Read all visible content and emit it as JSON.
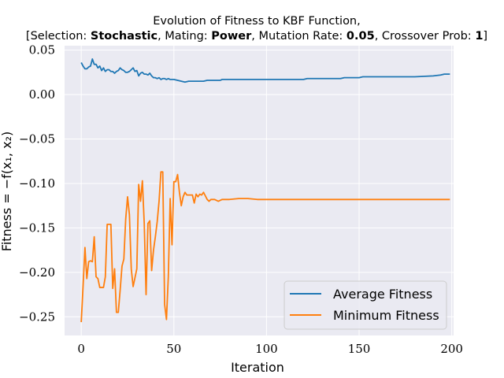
{
  "chart_data": {
    "type": "line",
    "title_line1": "Evolution of Fitness to KBF Function,",
    "title_line2": {
      "t0": "[Selection: ",
      "t1": "Stochastic",
      "t2": ", Mating: ",
      "t3": "Power",
      "t4": ", Mutation Rate: ",
      "t5": "0.05",
      "t6": ", Crossover Prob: ",
      "t7": "1",
      "t8": "]"
    },
    "xlabel": "Iteration",
    "ylabel": "Fitness = −f(x₁, x₂)",
    "xlim": [
      -9,
      201
    ],
    "ylim": [
      -0.271,
      0.055
    ],
    "x_ticks": [
      0,
      50,
      100,
      150,
      200
    ],
    "y_ticks": [
      0.05,
      0.0,
      -0.05,
      -0.1,
      -0.15,
      -0.2,
      -0.25
    ],
    "x_tick_labels": [
      "0",
      "50",
      "100",
      "150",
      "200"
    ],
    "y_tick_labels": [
      "0.05",
      "0.00",
      "−0.05",
      "−0.10",
      "−0.15",
      "−0.20",
      "−0.25"
    ],
    "grid": true,
    "legend_position": "lower-right",
    "series": [
      {
        "name": "Average Fitness",
        "color": "#1f77b4",
        "points": [
          [
            0,
            0.036
          ],
          [
            1,
            0.032
          ],
          [
            2,
            0.029
          ],
          [
            3,
            0.029
          ],
          [
            4,
            0.031
          ],
          [
            5,
            0.032
          ],
          [
            6,
            0.04
          ],
          [
            7,
            0.034
          ],
          [
            8,
            0.034
          ],
          [
            9,
            0.03
          ],
          [
            10,
            0.032
          ],
          [
            11,
            0.027
          ],
          [
            12,
            0.03
          ],
          [
            13,
            0.026
          ],
          [
            14,
            0.028
          ],
          [
            15,
            0.028
          ],
          [
            16,
            0.026
          ],
          [
            17,
            0.026
          ],
          [
            18,
            0.024
          ],
          [
            19,
            0.026
          ],
          [
            20,
            0.027
          ],
          [
            21,
            0.03
          ],
          [
            22,
            0.028
          ],
          [
            23,
            0.027
          ],
          [
            24,
            0.025
          ],
          [
            25,
            0.025
          ],
          [
            26,
            0.026
          ],
          [
            27,
            0.028
          ],
          [
            28,
            0.03
          ],
          [
            29,
            0.026
          ],
          [
            30,
            0.027
          ],
          [
            31,
            0.021
          ],
          [
            32,
            0.024
          ],
          [
            33,
            0.025
          ],
          [
            34,
            0.023
          ],
          [
            35,
            0.023
          ],
          [
            36,
            0.022
          ],
          [
            37,
            0.024
          ],
          [
            38,
            0.021
          ],
          [
            39,
            0.019
          ],
          [
            40,
            0.019
          ],
          [
            41,
            0.018
          ],
          [
            42,
            0.019
          ],
          [
            43,
            0.017
          ],
          [
            44,
            0.018
          ],
          [
            45,
            0.018
          ],
          [
            46,
            0.017
          ],
          [
            47,
            0.018
          ],
          [
            48,
            0.017
          ],
          [
            49,
            0.017
          ],
          [
            50,
            0.017
          ],
          [
            52,
            0.016
          ],
          [
            54,
            0.015
          ],
          [
            56,
            0.014
          ],
          [
            58,
            0.015
          ],
          [
            60,
            0.015
          ],
          [
            62,
            0.015
          ],
          [
            64,
            0.015
          ],
          [
            66,
            0.015
          ],
          [
            68,
            0.016
          ],
          [
            70,
            0.016
          ],
          [
            75,
            0.016
          ],
          [
            76,
            0.017
          ],
          [
            80,
            0.017
          ],
          [
            90,
            0.017
          ],
          [
            100,
            0.017
          ],
          [
            110,
            0.017
          ],
          [
            120,
            0.017
          ],
          [
            122,
            0.018
          ],
          [
            130,
            0.018
          ],
          [
            140,
            0.018
          ],
          [
            142,
            0.019
          ],
          [
            150,
            0.019
          ],
          [
            152,
            0.02
          ],
          [
            160,
            0.02
          ],
          [
            170,
            0.02
          ],
          [
            180,
            0.02
          ],
          [
            190,
            0.021
          ],
          [
            194,
            0.022
          ],
          [
            196,
            0.023
          ],
          [
            199,
            0.023
          ]
        ]
      },
      {
        "name": "Minimum Fitness",
        "color": "#ff7f0e",
        "points": [
          [
            0,
            -0.256
          ],
          [
            1,
            -0.215
          ],
          [
            2,
            -0.172
          ],
          [
            3,
            -0.207
          ],
          [
            4,
            -0.188
          ],
          [
            5,
            -0.187
          ],
          [
            6,
            -0.188
          ],
          [
            7,
            -0.16
          ],
          [
            8,
            -0.205
          ],
          [
            9,
            -0.207
          ],
          [
            10,
            -0.217
          ],
          [
            11,
            -0.217
          ],
          [
            12,
            -0.217
          ],
          [
            13,
            -0.205
          ],
          [
            14,
            -0.146
          ],
          [
            15,
            -0.146
          ],
          [
            16,
            -0.146
          ],
          [
            17,
            -0.218
          ],
          [
            18,
            -0.196
          ],
          [
            19,
            -0.245
          ],
          [
            20,
            -0.245
          ],
          [
            21,
            -0.22
          ],
          [
            22,
            -0.193
          ],
          [
            23,
            -0.185
          ],
          [
            24,
            -0.14
          ],
          [
            25,
            -0.115
          ],
          [
            26,
            -0.135
          ],
          [
            27,
            -0.196
          ],
          [
            28,
            -0.216
          ],
          [
            29,
            -0.206
          ],
          [
            30,
            -0.196
          ],
          [
            31,
            -0.101
          ],
          [
            32,
            -0.12
          ],
          [
            33,
            -0.097
          ],
          [
            34,
            -0.145
          ],
          [
            35,
            -0.225
          ],
          [
            36,
            -0.145
          ],
          [
            37,
            -0.142
          ],
          [
            38,
            -0.198
          ],
          [
            39,
            -0.175
          ],
          [
            40,
            -0.16
          ],
          [
            41,
            -0.143
          ],
          [
            42,
            -0.12
          ],
          [
            43,
            -0.087
          ],
          [
            44,
            -0.087
          ],
          [
            45,
            -0.236
          ],
          [
            46,
            -0.253
          ],
          [
            47,
            -0.205
          ],
          [
            48,
            -0.117
          ],
          [
            49,
            -0.169
          ],
          [
            50,
            -0.098
          ],
          [
            51,
            -0.098
          ],
          [
            52,
            -0.09
          ],
          [
            53,
            -0.11
          ],
          [
            54,
            -0.125
          ],
          [
            55,
            -0.115
          ],
          [
            56,
            -0.11
          ],
          [
            57,
            -0.113
          ],
          [
            58,
            -0.113
          ],
          [
            60,
            -0.113
          ],
          [
            61,
            -0.122
          ],
          [
            62,
            -0.112
          ],
          [
            63,
            -0.115
          ],
          [
            64,
            -0.112
          ],
          [
            65,
            -0.113
          ],
          [
            66,
            -0.11
          ],
          [
            67,
            -0.114
          ],
          [
            68,
            -0.118
          ],
          [
            69,
            -0.12
          ],
          [
            70,
            -0.118
          ],
          [
            72,
            -0.118
          ],
          [
            74,
            -0.12
          ],
          [
            76,
            -0.118
          ],
          [
            80,
            -0.118
          ],
          [
            85,
            -0.117
          ],
          [
            90,
            -0.117
          ],
          [
            95,
            -0.118
          ],
          [
            100,
            -0.118
          ],
          [
            110,
            -0.118
          ],
          [
            120,
            -0.118
          ],
          [
            150,
            -0.118
          ],
          [
            199,
            -0.118
          ]
        ]
      }
    ]
  }
}
